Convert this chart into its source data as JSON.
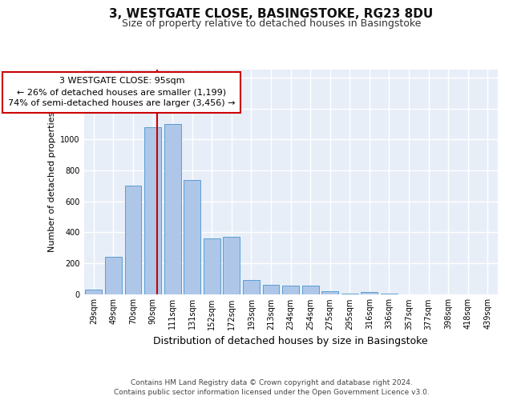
{
  "title1": "3, WESTGATE CLOSE, BASINGSTOKE, RG23 8DU",
  "title2": "Size of property relative to detached houses in Basingstoke",
  "xlabel": "Distribution of detached houses by size in Basingstoke",
  "ylabel": "Number of detached properties",
  "categories": [
    "29sqm",
    "49sqm",
    "70sqm",
    "90sqm",
    "111sqm",
    "131sqm",
    "152sqm",
    "172sqm",
    "193sqm",
    "213sqm",
    "234sqm",
    "254sqm",
    "275sqm",
    "295sqm",
    "316sqm",
    "336sqm",
    "357sqm",
    "377sqm",
    "398sqm",
    "418sqm",
    "439sqm"
  ],
  "values": [
    30,
    240,
    700,
    1080,
    1100,
    740,
    360,
    370,
    90,
    60,
    55,
    55,
    20,
    5,
    15,
    5,
    0,
    0,
    0,
    0,
    0
  ],
  "bar_color": "#aec6e8",
  "bar_edge_color": "#5a9fd4",
  "annotation_text": "3 WESTGATE CLOSE: 95sqm\n← 26% of detached houses are smaller (1,199)\n74% of semi-detached houses are larger (3,456) →",
  "annotation_box_color": "#ffffff",
  "annotation_box_edge_color": "#cc0000",
  "property_line_color": "#cc0000",
  "ylim": [
    0,
    1450
  ],
  "yticks": [
    0,
    200,
    400,
    600,
    800,
    1000,
    1200,
    1400
  ],
  "footer1": "Contains HM Land Registry data © Crown copyright and database right 2024.",
  "footer2": "Contains public sector information licensed under the Open Government Licence v3.0.",
  "bg_color": "#e8eef8",
  "grid_color": "#ffffff",
  "title1_fontsize": 11,
  "title2_fontsize": 9,
  "xlabel_fontsize": 9,
  "ylabel_fontsize": 8,
  "tick_fontsize": 7,
  "annotation_fontsize": 8,
  "footer_fontsize": 6.5
}
